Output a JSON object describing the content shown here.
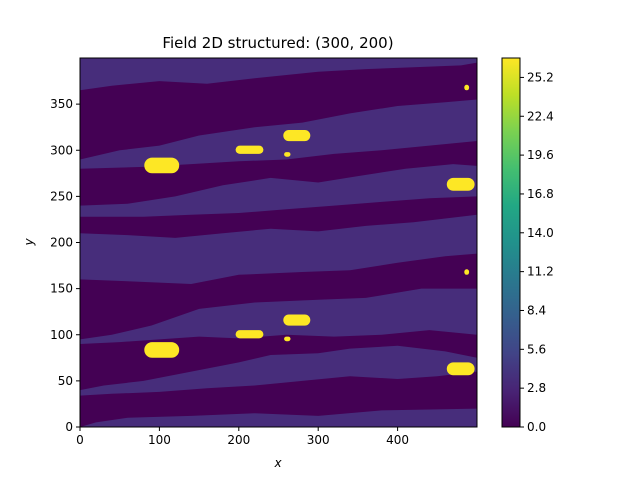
{
  "chart_data": {
    "type": "heatmap",
    "title": "Field 2D structured: (300, 200)",
    "xlabel": "x",
    "ylabel": "y",
    "xlim": [
      0,
      500
    ],
    "ylim": [
      0,
      400
    ],
    "xticks": [
      "0",
      "100",
      "200",
      "300",
      "400"
    ],
    "yticks": [
      "0",
      "50",
      "100",
      "150",
      "200",
      "250",
      "300",
      "350"
    ],
    "colormap": "viridis",
    "colorbar": {
      "range": [
        0.0,
        26.6
      ],
      "ticks": [
        "0.0",
        "2.8",
        "5.6",
        "8.4",
        "11.2",
        "14.0",
        "16.8",
        "19.6",
        "22.4",
        "25.2"
      ]
    },
    "levels": {
      "low": 0.3,
      "mid": 3.2,
      "high": 25.5
    },
    "colors": {
      "low": "#440154",
      "mid": "#472d7b",
      "high": "#fde725"
    },
    "high_value_blobs": [
      {
        "x": [
          81,
          125
        ],
        "y": [
          275,
          292
        ]
      },
      {
        "x": [
          196,
          231
        ],
        "y": [
          296,
          305
        ]
      },
      {
        "x": [
          256,
          290
        ],
        "y": [
          310,
          322
        ]
      },
      {
        "x": [
          257,
          265
        ],
        "y": [
          293,
          298
        ]
      },
      {
        "x": [
          462,
          497
        ],
        "y": [
          256,
          270
        ]
      },
      {
        "x": [
          484,
          490
        ],
        "y": [
          365,
          371
        ]
      },
      {
        "x": [
          81,
          125
        ],
        "y": [
          75,
          92
        ]
      },
      {
        "x": [
          196,
          231
        ],
        "y": [
          96,
          105
        ]
      },
      {
        "x": [
          256,
          290
        ],
        "y": [
          110,
          122
        ]
      },
      {
        "x": [
          257,
          265
        ],
        "y": [
          93,
          98
        ]
      },
      {
        "x": [
          462,
          497
        ],
        "y": [
          56,
          70
        ]
      },
      {
        "x": [
          484,
          490
        ],
        "y": [
          165,
          171
        ]
      }
    ]
  }
}
